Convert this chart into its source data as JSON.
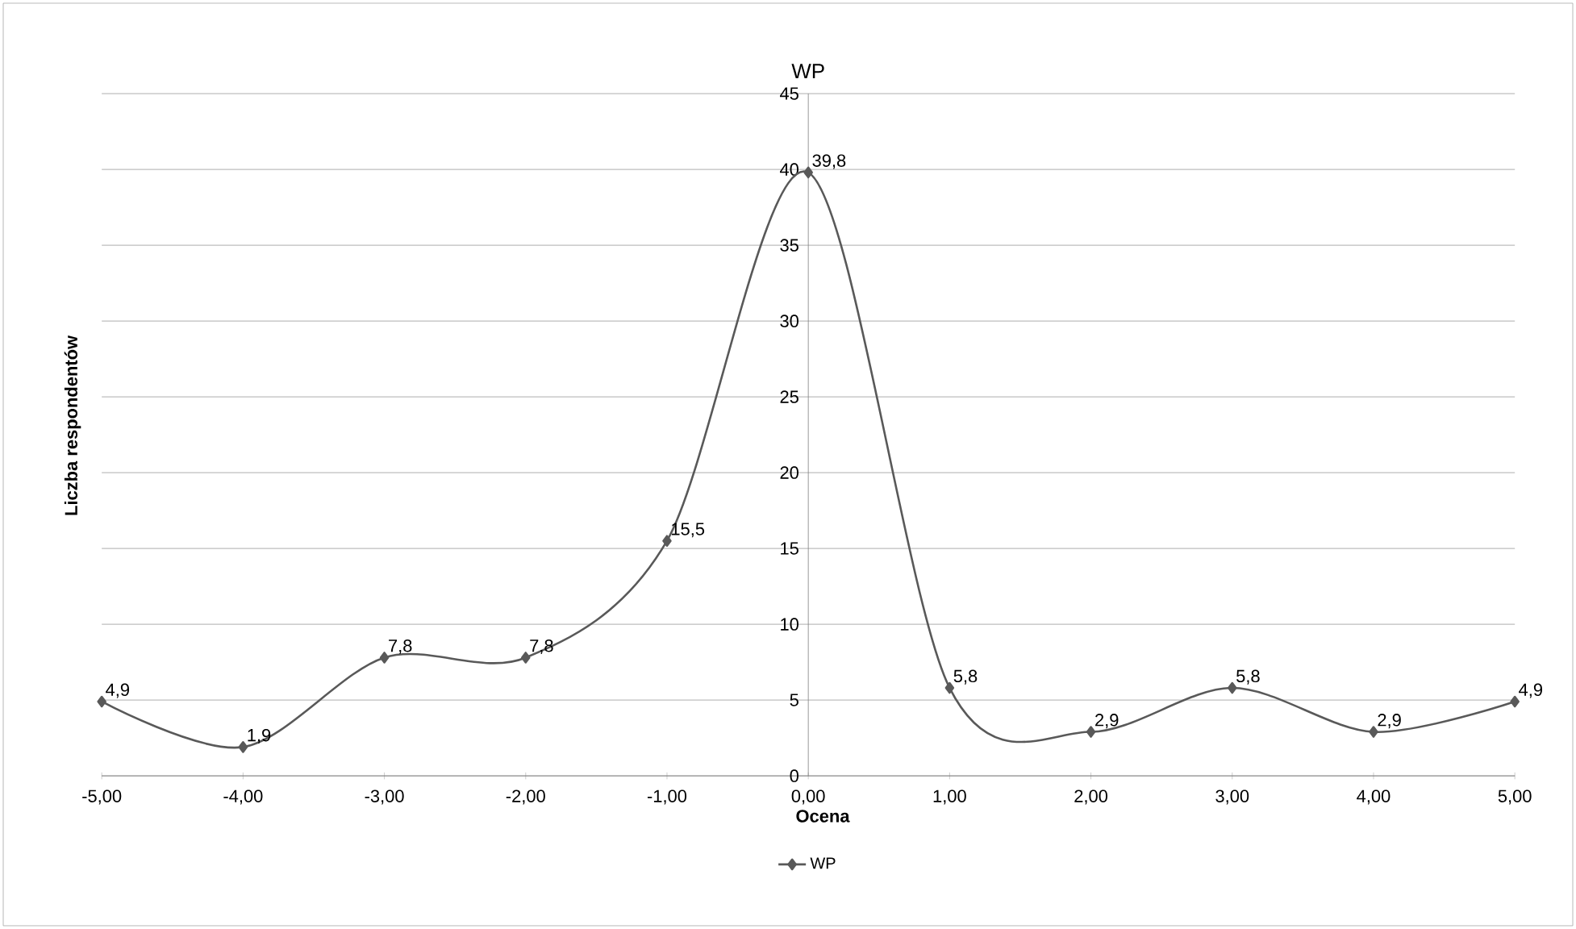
{
  "chart_data": {
    "type": "line",
    "title": "WP",
    "xlabel": "Ocena",
    "ylabel": "Liczba respondentów",
    "x": [
      -5,
      -4,
      -3,
      -2,
      -1,
      0,
      1,
      2,
      3,
      4,
      5
    ],
    "series": [
      {
        "name": "WP",
        "color": "#595959",
        "values": [
          4.9,
          1.9,
          7.8,
          7.8,
          15.5,
          39.8,
          5.8,
          2.9,
          5.8,
          2.9,
          4.9
        ],
        "value_labels": [
          "4,9",
          "1,9",
          "7,8",
          "7,8",
          "15,5",
          "39,8",
          "5,8",
          "2,9",
          "5,8",
          "2,9",
          "4,9"
        ]
      }
    ],
    "xlim": [
      -5,
      5
    ],
    "xticks": [
      {
        "value": -5,
        "label": "-5,00"
      },
      {
        "value": -4,
        "label": "-4,00"
      },
      {
        "value": -3,
        "label": "-3,00"
      },
      {
        "value": -2,
        "label": "-2,00"
      },
      {
        "value": -1,
        "label": "-1,00"
      },
      {
        "value": 0,
        "label": "0,00"
      },
      {
        "value": 1,
        "label": "1,00"
      },
      {
        "value": 2,
        "label": "2,00"
      },
      {
        "value": 3,
        "label": "3,00"
      },
      {
        "value": 4,
        "label": "4,00"
      },
      {
        "value": 5,
        "label": "5,00"
      }
    ],
    "ylim": [
      0,
      45
    ],
    "yticks": [
      0,
      5,
      10,
      15,
      20,
      25,
      30,
      35,
      40,
      45
    ],
    "grid": "y",
    "legend": "bottom",
    "marker": "diamond",
    "line_style": "solid"
  }
}
